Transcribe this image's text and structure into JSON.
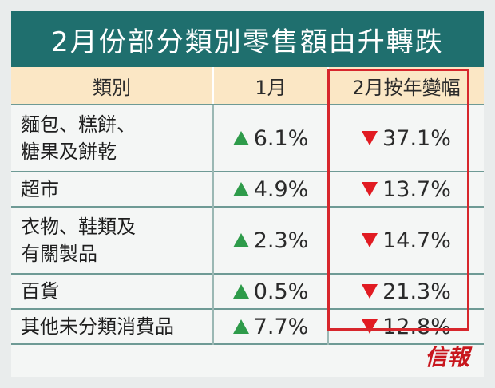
{
  "chart_data": {
    "type": "table",
    "title": "2月份部分類別零售額由升轉跌",
    "columns": [
      "類別",
      "1月",
      "2月按年變幅"
    ],
    "rows": [
      {
        "category": "麵包、糕餅、\n糖果及餅乾",
        "jan": "6.1%",
        "jan_dir": "up",
        "feb": "37.1%",
        "feb_dir": "down"
      },
      {
        "category": "超市",
        "jan": "4.9%",
        "jan_dir": "up",
        "feb": "13.7%",
        "feb_dir": "down"
      },
      {
        "category": "衣物、鞋類及\n有關製品",
        "jan": "2.3%",
        "jan_dir": "up",
        "feb": "14.7%",
        "feb_dir": "down"
      },
      {
        "category": "百貨",
        "jan": "0.5%",
        "jan_dir": "up",
        "feb": "21.3%",
        "feb_dir": "down"
      },
      {
        "category": "其他未分類消費品",
        "jan": "7.7%",
        "jan_dir": "up",
        "feb": "12.8%",
        "feb_dir": "down"
      }
    ],
    "jan_values": [
      6.1,
      4.9,
      2.3,
      0.5,
      7.7
    ],
    "feb_values": [
      -37.1,
      -13.7,
      -14.7,
      -21.3,
      -12.8
    ]
  },
  "colors": {
    "title_bg": "#1f6f6e",
    "header_bg": "#fbe7c5",
    "up": "#2e9b4a",
    "down": "#e11b22",
    "highlight_border": "#d7262c"
  },
  "logo_text": "信報"
}
